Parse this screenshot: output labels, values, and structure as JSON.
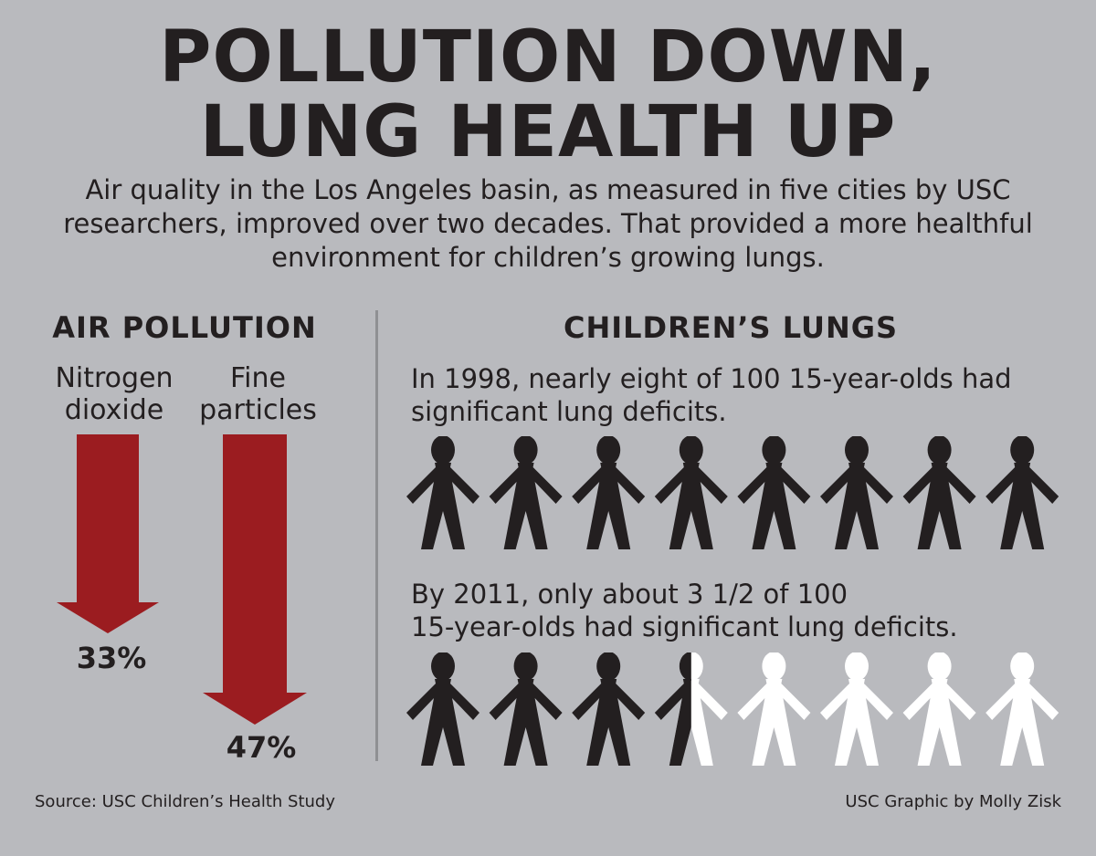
{
  "title": {
    "line1": "POLLUTION DOWN,",
    "line2": "LUNG HEALTH UP"
  },
  "subtitle": "Air quality in the Los Angeles basin, as measured in five cities by USC researchers, improved over two decades. That provided a more healthful environment for children’s growing lungs.",
  "air_pollution": {
    "heading": "AIR POLLUTION",
    "items": [
      {
        "label_line1": "Nitrogen",
        "label_line2": "dioxide",
        "decrease": "33%",
        "value": 33,
        "color": "#9b1c20"
      },
      {
        "label_line1": "Fine",
        "label_line2": "particles",
        "decrease": "47%",
        "value": 47,
        "color": "#9b1c20"
      }
    ]
  },
  "childrens_lungs": {
    "heading": "CHILDREN’S LUNGS",
    "year_1998": {
      "text": "In 1998, nearly eight of 100 15-year-olds had significant lung deficits.",
      "dark_count": 8,
      "total_figures": 8
    },
    "year_2011": {
      "text_line1": "By 2011, only about 3 1/2 of 100",
      "text_line2": "15-year-olds had significant lung deficits.",
      "dark_count": 3.5,
      "total_figures": 8
    },
    "colors": {
      "dark": "#231f20",
      "light": "#ffffff"
    }
  },
  "footer": {
    "source": "Source:  USC Children’s Health Study",
    "credit": "USC Graphic by Molly Zisk"
  }
}
